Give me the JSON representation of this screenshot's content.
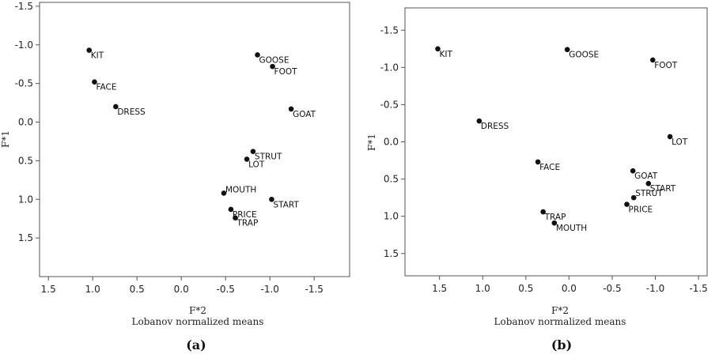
{
  "chart_data": [
    {
      "type": "scatter",
      "panel_label": "(a)",
      "xlabel": "F*2",
      "xlabel_sub": "Lobanov normalized means",
      "ylabel": "F*1",
      "xlim": [
        1.6,
        -1.9
      ],
      "ylim": [
        -1.55,
        2.0
      ],
      "x_axis_reversed": true,
      "y_axis_reversed": true,
      "xticks": [
        1.5,
        1.0,
        0.5,
        0.0,
        -0.5,
        -1.0,
        -1.5
      ],
      "xtick_labels": [
        "1.5",
        "1.0",
        "0.5",
        "0.0",
        "-0.5",
        "-1.0",
        "-1.5"
      ],
      "yticks": [
        -1.5,
        -1.0,
        -0.5,
        0.0,
        0.5,
        1.0,
        1.5
      ],
      "ytick_labels": [
        "-1.5",
        "-1.0",
        "-0.5",
        "0.0",
        "0.5",
        "1.0",
        "1.5"
      ],
      "grid": false,
      "points": [
        {
          "label": "KIT",
          "x": 1.04,
          "y": -0.93
        },
        {
          "label": "FACE",
          "x": 0.98,
          "y": -0.52
        },
        {
          "label": "DRESS",
          "x": 0.74,
          "y": -0.2
        },
        {
          "label": "GOOSE",
          "x": -0.86,
          "y": -0.87
        },
        {
          "label": "FOOT",
          "x": -1.03,
          "y": -0.72
        },
        {
          "label": "GOAT",
          "x": -1.24,
          "y": -0.17
        },
        {
          "label": "STRUT",
          "x": -0.81,
          "y": 0.38
        },
        {
          "label": "LOT",
          "x": -0.74,
          "y": 0.48
        },
        {
          "label": "MOUTH",
          "x": -0.48,
          "y": 0.92
        },
        {
          "label": "START",
          "x": -1.02,
          "y": 1.0
        },
        {
          "label": "PRICE",
          "x": -0.56,
          "y": 1.13
        },
        {
          "label": "TRAP",
          "x": -0.61,
          "y": 1.24
        }
      ]
    },
    {
      "type": "scatter",
      "panel_label": "(b)",
      "xlabel": "F*2",
      "xlabel_sub": "Lobanov normalized means",
      "ylabel": "F*1",
      "xlim": [
        1.9,
        -1.6
      ],
      "ylim": [
        -1.8,
        1.8
      ],
      "x_axis_reversed": true,
      "y_axis_reversed": true,
      "xticks": [
        1.5,
        1.0,
        0.5,
        0.0,
        -0.5,
        -1.0,
        -1.5
      ],
      "xtick_labels": [
        "1.5",
        "1.0",
        "0.5",
        "0.0",
        "-0.5",
        "-1.0",
        "-1.5"
      ],
      "yticks": [
        -1.5,
        -1.0,
        -0.5,
        0.0,
        0.5,
        1.0,
        1.5
      ],
      "ytick_labels": [
        "-1.5",
        "-1.0",
        "-0.5",
        "0.0",
        "0.5",
        "1.0",
        "1.5"
      ],
      "grid": false,
      "points": [
        {
          "label": "KIT",
          "x": 1.52,
          "y": -1.25
        },
        {
          "label": "GOOSE",
          "x": 0.02,
          "y": -1.24
        },
        {
          "label": "FOOT",
          "x": -0.97,
          "y": -1.1
        },
        {
          "label": "DRESS",
          "x": 1.04,
          "y": -0.28
        },
        {
          "label": "LOT",
          "x": -1.17,
          "y": -0.07
        },
        {
          "label": "FACE",
          "x": 0.36,
          "y": 0.27
        },
        {
          "label": "GOAT",
          "x": -0.74,
          "y": 0.39
        },
        {
          "label": "START",
          "x": -0.92,
          "y": 0.56
        },
        {
          "label": "STRUT",
          "x": -0.75,
          "y": 0.75
        },
        {
          "label": "PRICE",
          "x": -0.67,
          "y": 0.84
        },
        {
          "label": "TRAP",
          "x": 0.3,
          "y": 0.94
        },
        {
          "label": "MOUTH",
          "x": 0.17,
          "y": 1.09
        }
      ]
    }
  ]
}
